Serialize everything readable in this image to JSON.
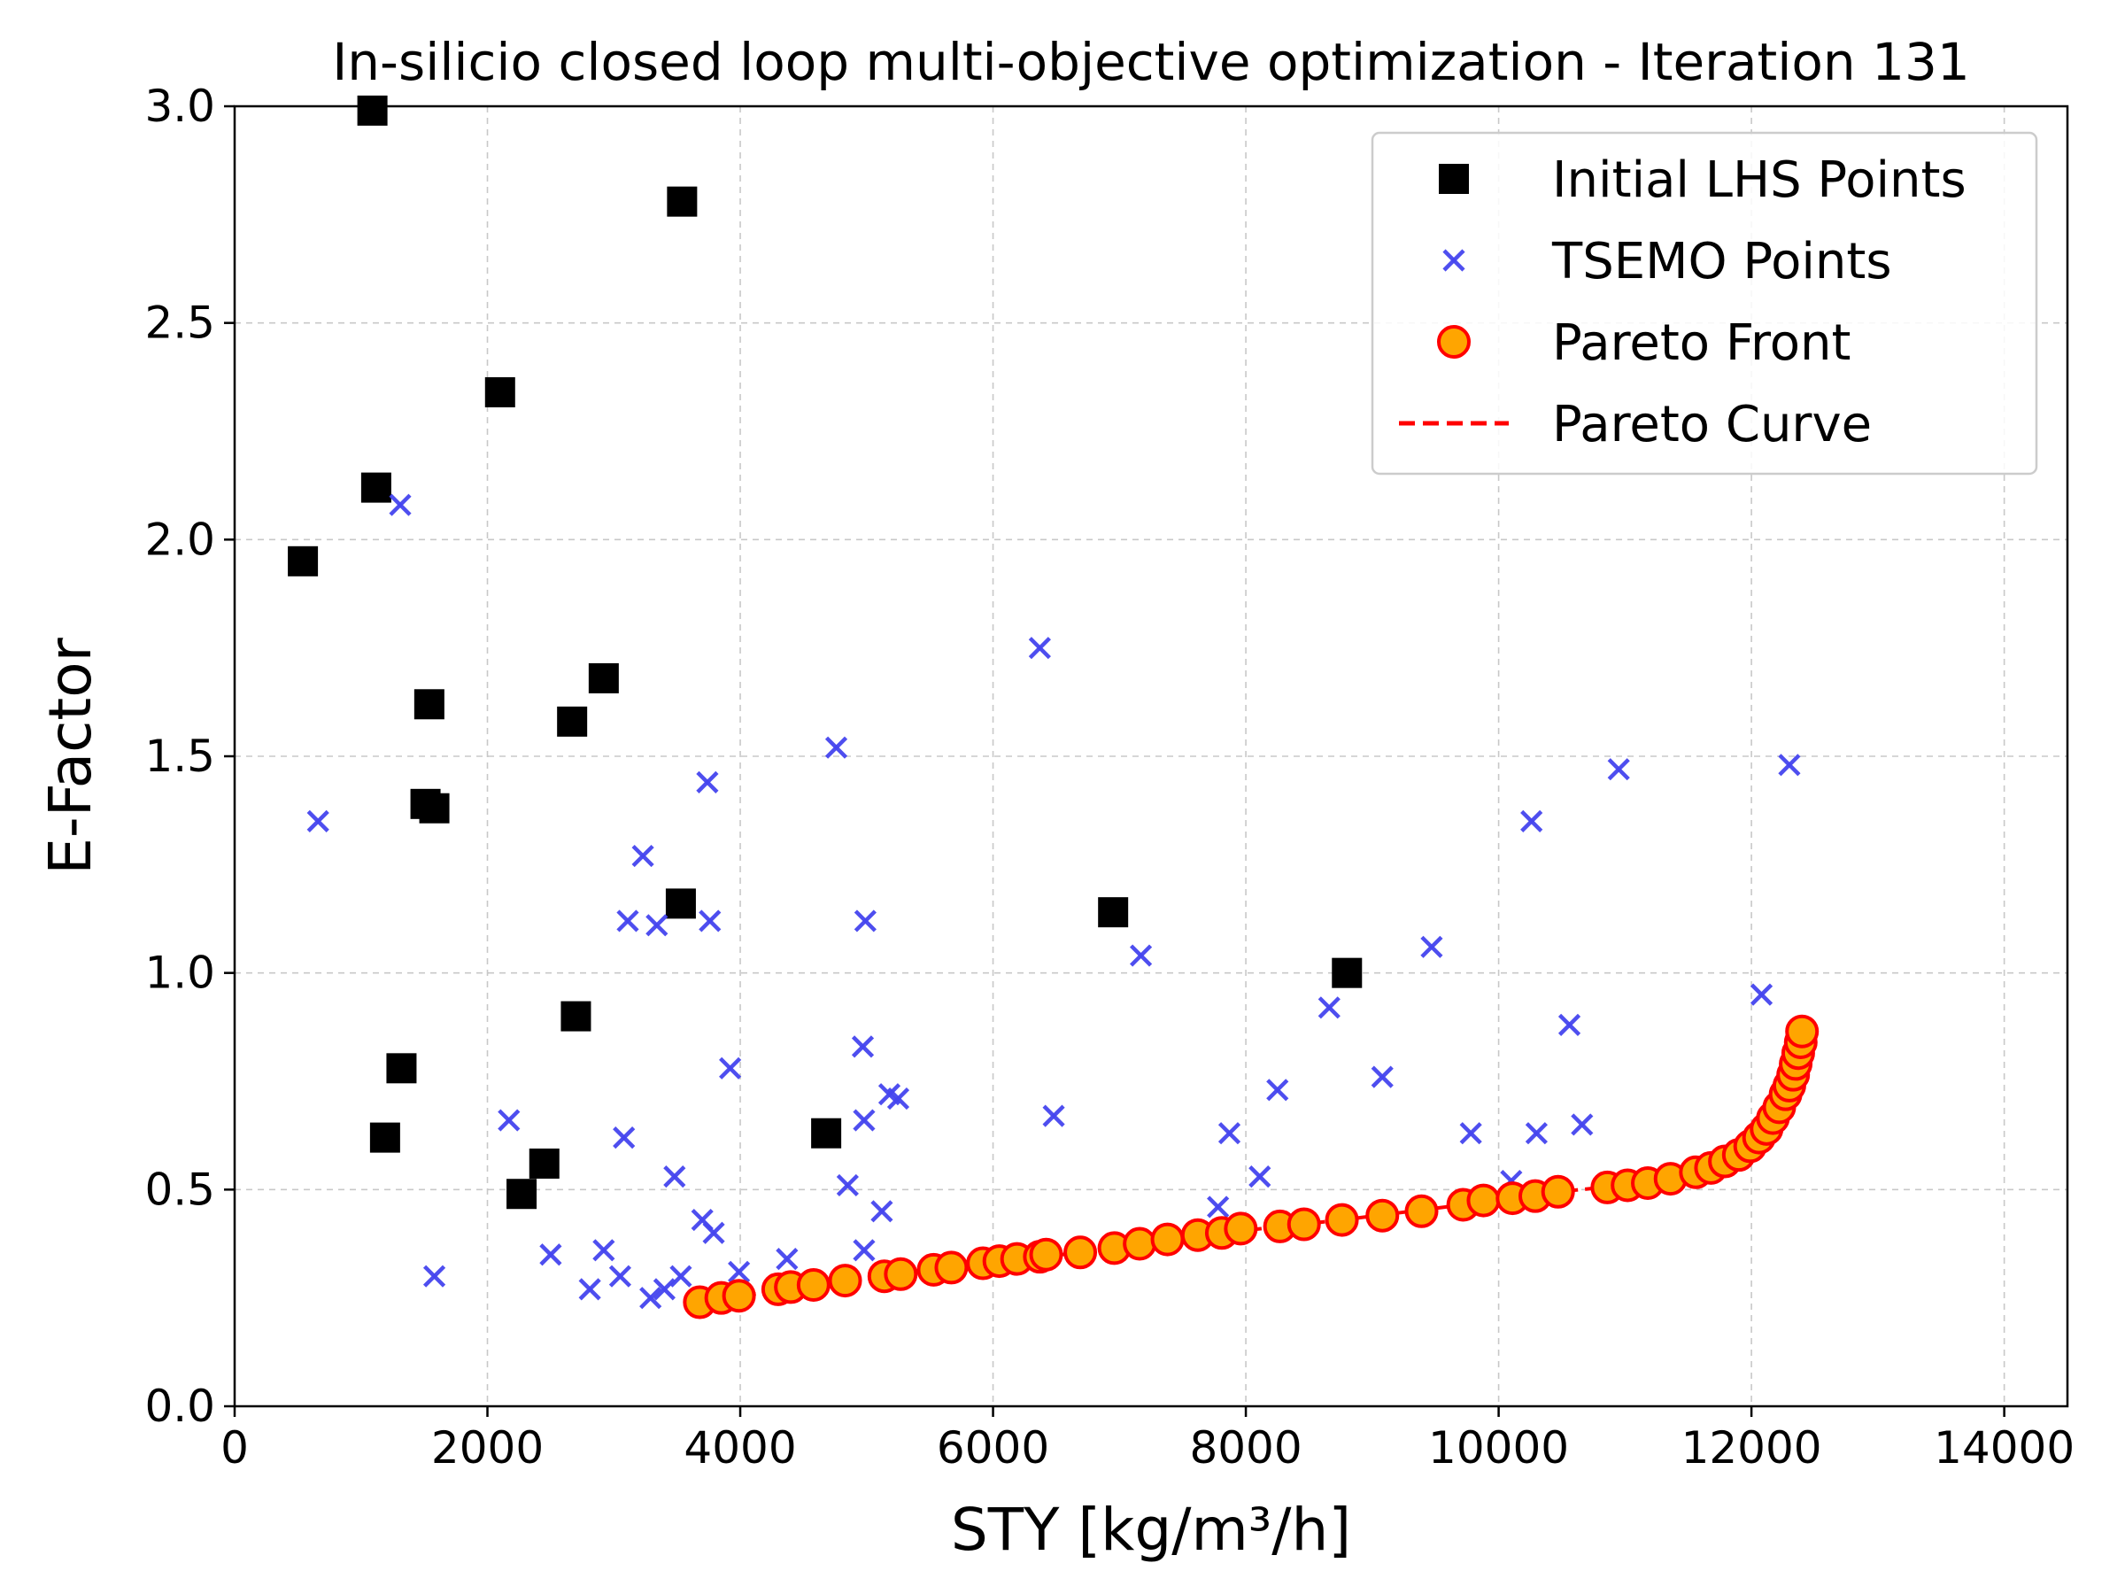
{
  "chart_data": {
    "type": "scatter",
    "title": "In-silicio closed loop multi-objective optimization - Iteration 131",
    "xlabel": "STY [kg/m³/h]",
    "ylabel": "E-Factor",
    "xlim": [
      0,
      14500
    ],
    "ylim": [
      0,
      3.0
    ],
    "x_ticks": [
      0,
      2000,
      4000,
      6000,
      8000,
      10000,
      12000,
      14000
    ],
    "y_ticks": [
      0.0,
      0.5,
      1.0,
      1.5,
      2.0,
      2.5,
      3.0
    ],
    "x_tick_labels": [
      "0",
      "2000",
      "4000",
      "6000",
      "8000",
      "10000",
      "12000",
      "14000"
    ],
    "y_tick_labels": [
      "0.0",
      "0.5",
      "1.0",
      "1.5",
      "2.0",
      "2.5",
      "3.0"
    ],
    "grid": true,
    "legend_position": "top-right",
    "series": [
      {
        "name": "Initial LHS Points",
        "marker": "square",
        "color": "#000000",
        "points": [
          [
            1090,
            2.99
          ],
          [
            3540,
            2.78
          ],
          [
            2100,
            2.34
          ],
          [
            1120,
            2.12
          ],
          [
            540,
            1.95
          ],
          [
            2920,
            1.68
          ],
          [
            1540,
            1.62
          ],
          [
            2670,
            1.58
          ],
          [
            1510,
            1.39
          ],
          [
            1580,
            1.38
          ],
          [
            3530,
            1.16
          ],
          [
            6950,
            1.14
          ],
          [
            8800,
            1.0
          ],
          [
            2700,
            0.9
          ],
          [
            1320,
            0.78
          ],
          [
            1190,
            0.62
          ],
          [
            4680,
            0.63
          ],
          [
            2450,
            0.56
          ],
          [
            2270,
            0.49
          ]
        ]
      },
      {
        "name": "TSEMO Points",
        "marker": "x",
        "color": "#4444ee",
        "points": [
          [
            1310,
            2.08
          ],
          [
            660,
            1.35
          ],
          [
            3740,
            1.44
          ],
          [
            4760,
            1.52
          ],
          [
            6370,
            1.75
          ],
          [
            3230,
            1.27
          ],
          [
            3110,
            1.12
          ],
          [
            3340,
            1.11
          ],
          [
            3760,
            1.12
          ],
          [
            4990,
            1.12
          ],
          [
            7170,
            1.04
          ],
          [
            3920,
            0.78
          ],
          [
            4970,
            0.83
          ],
          [
            5180,
            0.72
          ],
          [
            5250,
            0.71
          ],
          [
            4980,
            0.66
          ],
          [
            6480,
            0.67
          ],
          [
            2170,
            0.66
          ],
          [
            3080,
            0.62
          ],
          [
            3480,
            0.53
          ],
          [
            4850,
            0.51
          ],
          [
            5120,
            0.45
          ],
          [
            3700,
            0.43
          ],
          [
            3790,
            0.4
          ],
          [
            2500,
            0.35
          ],
          [
            2920,
            0.36
          ],
          [
            3050,
            0.3
          ],
          [
            2810,
            0.27
          ],
          [
            1580,
            0.3
          ],
          [
            3290,
            0.25
          ],
          [
            3400,
            0.27
          ],
          [
            3530,
            0.3
          ],
          [
            3990,
            0.31
          ],
          [
            4370,
            0.34
          ],
          [
            4980,
            0.36
          ],
          [
            7780,
            0.46
          ],
          [
            7870,
            0.63
          ],
          [
            8110,
            0.53
          ],
          [
            8250,
            0.73
          ],
          [
            8660,
            0.92
          ],
          [
            9080,
            0.76
          ],
          [
            9470,
            1.06
          ],
          [
            9780,
            0.63
          ],
          [
            10100,
            0.52
          ],
          [
            10300,
            0.63
          ],
          [
            10260,
            1.35
          ],
          [
            10560,
            0.88
          ],
          [
            10660,
            0.65
          ],
          [
            10950,
            1.47
          ],
          [
            12080,
            0.95
          ],
          [
            12300,
            1.48
          ]
        ]
      },
      {
        "name": "Pareto Front",
        "marker": "circle",
        "color": "#ffa500",
        "edge_color": "#ff0000",
        "points": [
          [
            3680,
            0.24
          ],
          [
            3850,
            0.25
          ],
          [
            3990,
            0.255
          ],
          [
            4300,
            0.27
          ],
          [
            4400,
            0.275
          ],
          [
            4580,
            0.28
          ],
          [
            4830,
            0.29
          ],
          [
            5140,
            0.3
          ],
          [
            5270,
            0.305
          ],
          [
            5530,
            0.315
          ],
          [
            5670,
            0.32
          ],
          [
            5920,
            0.33
          ],
          [
            6050,
            0.335
          ],
          [
            6190,
            0.34
          ],
          [
            6370,
            0.345
          ],
          [
            6420,
            0.35
          ],
          [
            6690,
            0.355
          ],
          [
            6960,
            0.365
          ],
          [
            7160,
            0.375
          ],
          [
            7380,
            0.385
          ],
          [
            7620,
            0.395
          ],
          [
            7810,
            0.4
          ],
          [
            7960,
            0.41
          ],
          [
            8270,
            0.415
          ],
          [
            8460,
            0.42
          ],
          [
            8760,
            0.43
          ],
          [
            9080,
            0.44
          ],
          [
            9390,
            0.45
          ],
          [
            9720,
            0.465
          ],
          [
            9880,
            0.475
          ],
          [
            10110,
            0.48
          ],
          [
            10290,
            0.485
          ],
          [
            10470,
            0.495
          ],
          [
            10860,
            0.505
          ],
          [
            11020,
            0.51
          ],
          [
            11180,
            0.515
          ],
          [
            11360,
            0.525
          ],
          [
            11560,
            0.54
          ],
          [
            11680,
            0.55
          ],
          [
            11790,
            0.565
          ],
          [
            11900,
            0.58
          ],
          [
            11990,
            0.6
          ],
          [
            12060,
            0.62
          ],
          [
            12120,
            0.64
          ],
          [
            12170,
            0.665
          ],
          [
            12220,
            0.69
          ],
          [
            12270,
            0.72
          ],
          [
            12300,
            0.74
          ],
          [
            12330,
            0.765
          ],
          [
            12350,
            0.79
          ],
          [
            12370,
            0.815
          ],
          [
            12390,
            0.84
          ],
          [
            12400,
            0.865
          ]
        ]
      },
      {
        "name": "Pareto Curve",
        "marker": "dashed-line",
        "color": "#ff0000",
        "points": [
          [
            3680,
            0.24
          ],
          [
            4580,
            0.28
          ],
          [
            5670,
            0.32
          ],
          [
            6690,
            0.355
          ],
          [
            7810,
            0.4
          ],
          [
            8760,
            0.43
          ],
          [
            9720,
            0.465
          ],
          [
            10470,
            0.495
          ],
          [
            11180,
            0.515
          ],
          [
            11680,
            0.55
          ],
          [
            11990,
            0.6
          ],
          [
            12170,
            0.665
          ],
          [
            12300,
            0.74
          ],
          [
            12370,
            0.815
          ],
          [
            12400,
            0.865
          ]
        ]
      }
    ]
  }
}
